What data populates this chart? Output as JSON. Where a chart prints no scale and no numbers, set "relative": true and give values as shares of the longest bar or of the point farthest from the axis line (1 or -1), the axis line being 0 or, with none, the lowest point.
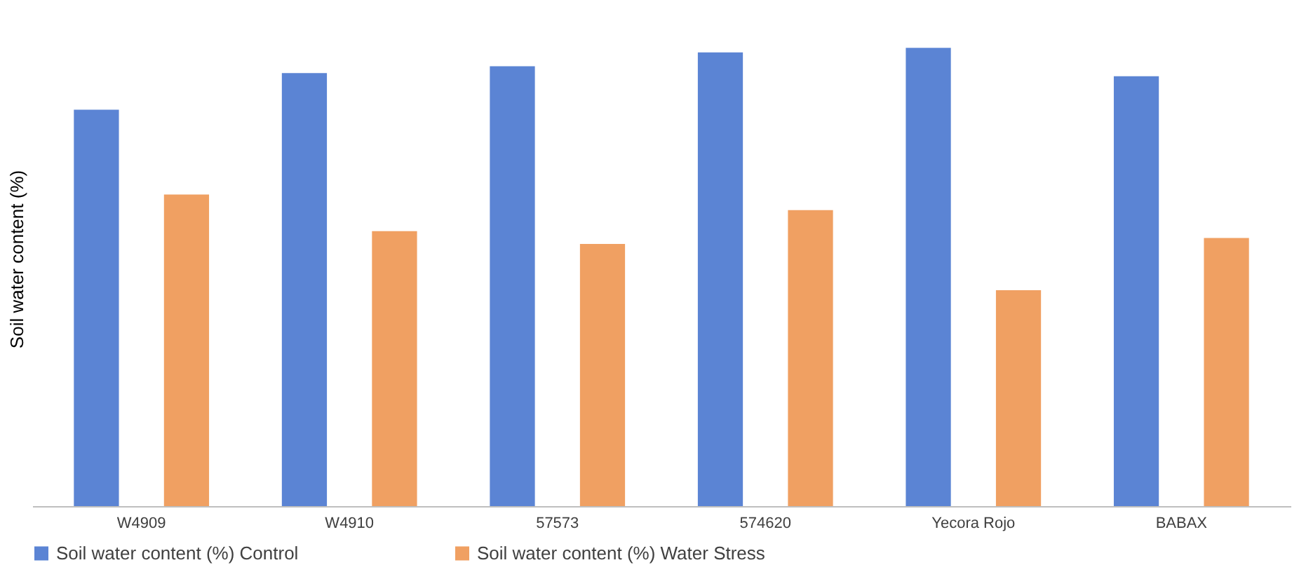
{
  "chart_data": {
    "type": "bar",
    "ylabel": "Soil water content (%)",
    "relative": true,
    "legend": "bottom",
    "categories": [
      "W4909",
      "W4910",
      "57573",
      "574620",
      "Yecora Rojo",
      "BABAX"
    ],
    "series": [
      {
        "name": "Soil water content (%) Control",
        "color": "#5b84d4",
        "values": [
          0.865,
          0.945,
          0.96,
          0.99,
          1.0,
          0.938
        ]
      },
      {
        "name": "Soil water content (%) Water Stress",
        "color": "#f0a062",
        "values": [
          0.68,
          0.6,
          0.572,
          0.646,
          0.471,
          0.585
        ]
      }
    ]
  }
}
